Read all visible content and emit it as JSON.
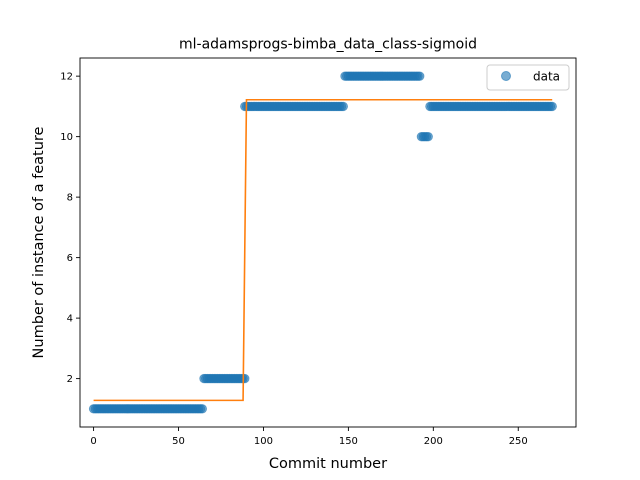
{
  "chart_data": {
    "type": "scatter",
    "title": "ml-adamsprogs-bimba_data_class-sigmoid",
    "xlabel": "Commit number",
    "ylabel": "Number of instance of a feature",
    "xlim": [
      -8,
      284
    ],
    "ylim": [
      0.4,
      12.6
    ],
    "xticks": [
      0,
      50,
      100,
      150,
      200,
      250
    ],
    "yticks": [
      2,
      4,
      6,
      8,
      10,
      12
    ],
    "grid": false,
    "legend": {
      "placement": "top-right",
      "entries": [
        "data"
      ]
    },
    "colors": {
      "data": "#1f77b4",
      "fit": "#ff7f0e"
    },
    "series": [
      {
        "name": "data",
        "kind": "scatter",
        "segments": [
          {
            "x_start": 0,
            "x_end": 64,
            "y": 1
          },
          {
            "x_start": 65,
            "x_end": 89,
            "y": 2
          },
          {
            "x_start": 89,
            "x_end": 147,
            "y": 11
          },
          {
            "x_start": 148,
            "x_end": 192,
            "y": 12
          },
          {
            "x_start": 193,
            "x_end": 197,
            "y": 10
          },
          {
            "x_start": 198,
            "x_end": 270,
            "y": 11
          }
        ]
      },
      {
        "kind": "line",
        "points": [
          [
            0,
            1.28
          ],
          [
            88,
            1.28
          ],
          [
            90,
            11.22
          ],
          [
            270,
            11.22
          ]
        ]
      }
    ]
  }
}
